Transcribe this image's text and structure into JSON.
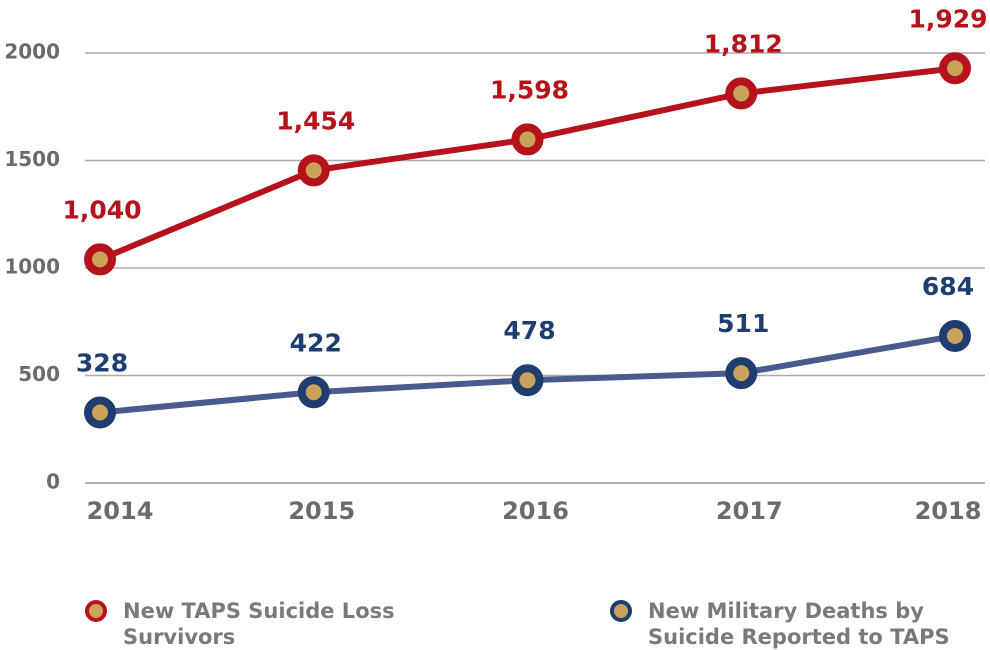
{
  "chart_data": {
    "type": "line",
    "categories": [
      "2014",
      "2015",
      "2016",
      "2017",
      "2018"
    ],
    "series": [
      {
        "name": "New TAPS Suicide Loss Survivors",
        "color": "#b5121b",
        "values": [
          1040,
          1454,
          1598,
          1812,
          1929
        ],
        "value_labels": [
          "1,040",
          "1,454",
          "1,598",
          "1,812",
          "1,929"
        ]
      },
      {
        "name": "New Military Deaths by Suicide Reported to TAPS",
        "color": "#1f3d6e",
        "line_color": "#4a5a8c",
        "values": [
          328,
          422,
          478,
          511,
          684
        ]
      }
    ],
    "ylim": [
      0,
      2000
    ],
    "yticks": [
      0,
      500,
      1000,
      1500,
      2000
    ],
    "grid": true,
    "marker_inner_color": "#c9a35a",
    "legend": "bottom"
  }
}
